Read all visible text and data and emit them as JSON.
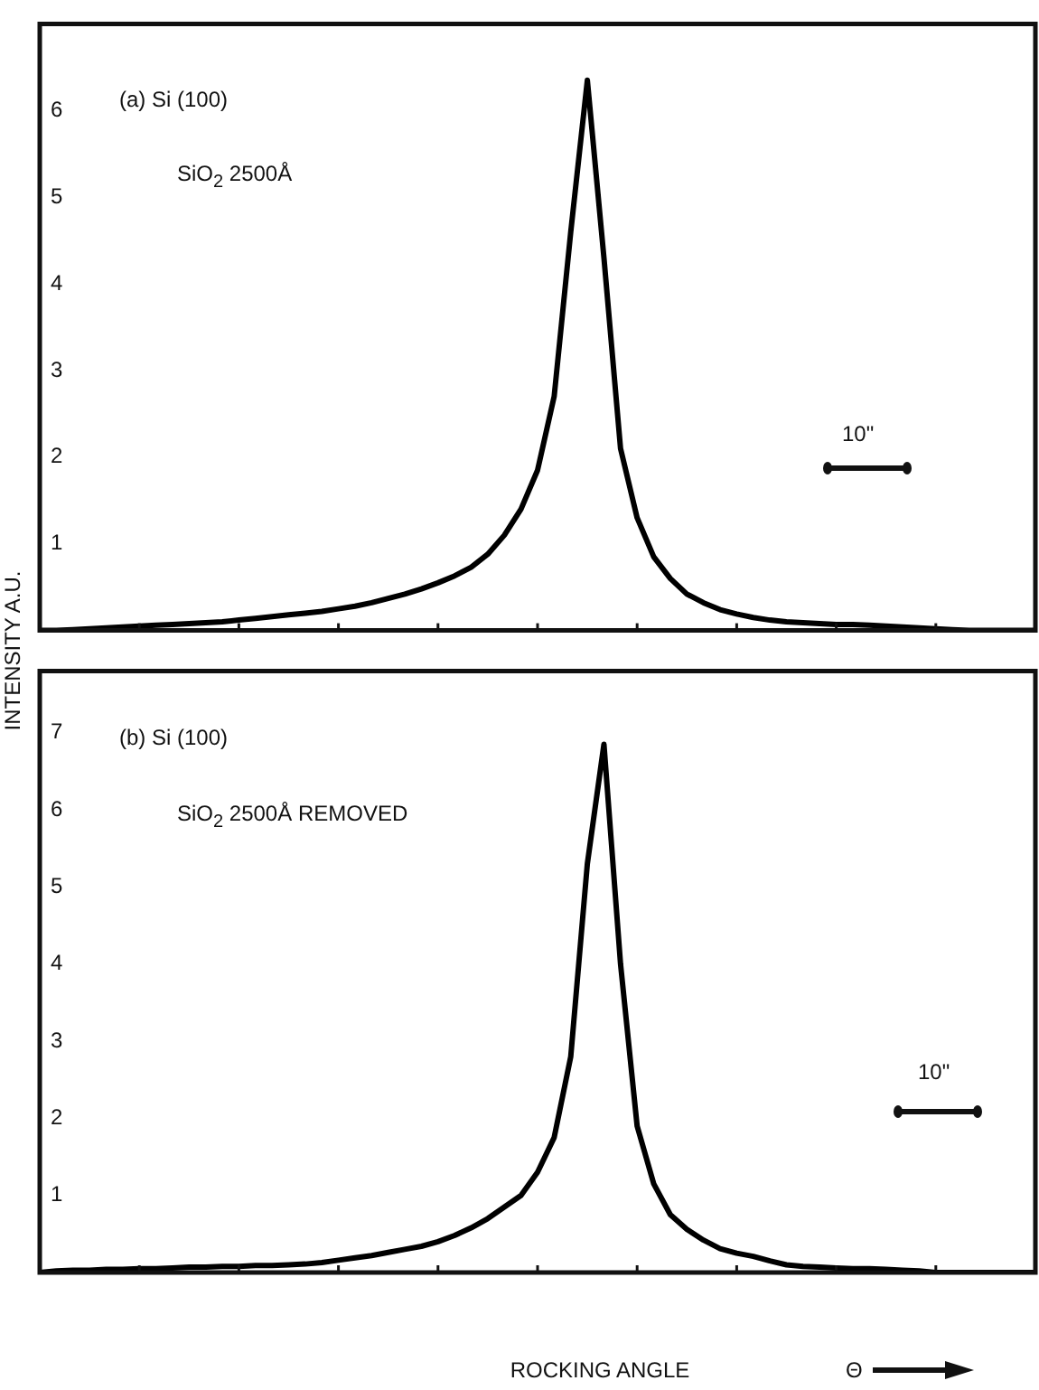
{
  "chart_data": [
    {
      "type": "line",
      "ylabel": "INTENSITY A.U.",
      "annotations": [
        "(a) Si (100)",
        "SiO$_{2}$ 2500Å",
        "10\""
      ],
      "categories": [
        null,
        null,
        null,
        null,
        null,
        null,
        null,
        null,
        null,
        null,
        null,
        null,
        null,
        null,
        null,
        null,
        null,
        null,
        null,
        null,
        null,
        null,
        null,
        null,
        null,
        null,
        null,
        null,
        null,
        null,
        null,
        null,
        null,
        null,
        null,
        null,
        null,
        null,
        null,
        null,
        null,
        null,
        null,
        null,
        null,
        null,
        null,
        null,
        null,
        null,
        null,
        null,
        null,
        null,
        null,
        null,
        null,
        null,
        null,
        null,
        null
      ],
      "values": [
        0,
        0,
        0.01,
        0.02,
        0.03,
        0.04,
        0.05,
        0.06,
        0.07,
        0.08,
        0.09,
        0.1,
        0.12,
        0.14,
        0.16,
        0.18,
        0.2,
        0.22,
        0.25,
        0.28,
        0.32,
        0.37,
        0.42,
        0.48,
        0.55,
        0.63,
        0.73,
        0.88,
        1.1,
        1.4,
        1.85,
        2.7,
        4.6,
        6.35,
        4.3,
        2.1,
        1.3,
        0.85,
        0.6,
        0.42,
        0.32,
        0.24,
        0.19,
        0.15,
        0.12,
        0.1,
        0.09,
        0.08,
        0.07,
        0.07,
        0.06,
        0.05,
        0.04,
        0.03,
        0.02,
        0.01,
        0,
        0,
        0,
        0,
        0
      ],
      "color": "#000000",
      "marker": "none",
      "ylim": [
        0,
        7.0
      ],
      "yticks": [
        1,
        2,
        3,
        4,
        5,
        6
      ],
      "tick_labels": "y"
    },
    {
      "type": "line",
      "xlabel": "ROCKING ANGLE",
      "annotations": [
        "(b) Si (100)",
        "SiO$_{2}$ 2500Å REMOVED",
        "10\"",
        "Θ"
      ],
      "categories": [
        null,
        null,
        null,
        null,
        null,
        null,
        null,
        null,
        null,
        null,
        null,
        null,
        null,
        null,
        null,
        null,
        null,
        null,
        null,
        null,
        null,
        null,
        null,
        null,
        null,
        null,
        null,
        null,
        null,
        null,
        null,
        null,
        null,
        null,
        null,
        null,
        null,
        null,
        null,
        null,
        null,
        null,
        null,
        null,
        null,
        null,
        null,
        null,
        null,
        null,
        null,
        null,
        null,
        null,
        null,
        null,
        null,
        null,
        null,
        null,
        null
      ],
      "values": [
        0,
        0.02,
        0.03,
        0.03,
        0.04,
        0.04,
        0.05,
        0.05,
        0.06,
        0.07,
        0.07,
        0.08,
        0.08,
        0.09,
        0.09,
        0.1,
        0.11,
        0.13,
        0.16,
        0.19,
        0.22,
        0.26,
        0.3,
        0.34,
        0.4,
        0.48,
        0.58,
        0.7,
        0.85,
        1.0,
        1.3,
        1.75,
        2.8,
        5.3,
        6.85,
        4.0,
        1.9,
        1.15,
        0.75,
        0.56,
        0.42,
        0.31,
        0.25,
        0.21,
        0.15,
        0.1,
        0.08,
        0.07,
        0.06,
        0.05,
        0.05,
        0.04,
        0.03,
        0.02,
        0,
        0,
        0,
        0,
        0,
        0,
        0
      ],
      "color": "#000000",
      "marker": "none",
      "ylim": [
        0,
        7.8
      ],
      "yticks": [
        1,
        2,
        3,
        4,
        5,
        6,
        7
      ],
      "tick_labels": "y"
    }
  ]
}
